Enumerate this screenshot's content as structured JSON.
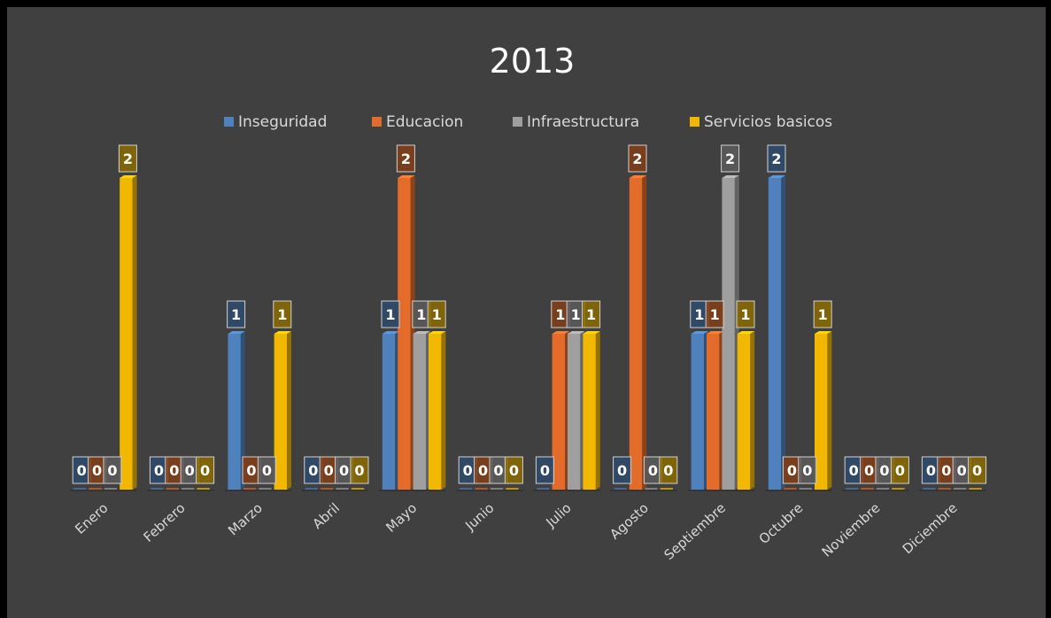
{
  "chart_data": {
    "type": "bar",
    "title": "2013",
    "categories": [
      "Enero",
      "Febrero",
      "Marzo",
      "Abril",
      "Mayo",
      "Junio",
      "Julio",
      "Agosto",
      "Septiembre",
      "Octubre",
      "Noviembre",
      "Diciembre"
    ],
    "series": [
      {
        "name": "Inseguridad",
        "color": "#4f81bd",
        "values": [
          0,
          0,
          1,
          0,
          1,
          0,
          0,
          0,
          1,
          2,
          0,
          0
        ]
      },
      {
        "name": "Educacion",
        "color": "#e46c2a",
        "values": [
          0,
          0,
          0,
          0,
          2,
          0,
          1,
          2,
          1,
          0,
          0,
          0
        ]
      },
      {
        "name": "Infraestructura",
        "color": "#9f9f9f",
        "values": [
          0,
          0,
          0,
          0,
          1,
          0,
          1,
          0,
          2,
          0,
          0,
          0
        ]
      },
      {
        "name": "Servicios basicos",
        "color": "#f2b800",
        "values": [
          2,
          0,
          1,
          0,
          1,
          0,
          1,
          0,
          1,
          1,
          0,
          0
        ]
      }
    ],
    "ylim": [
      0,
      2
    ],
    "legend_position": "top",
    "grid": false,
    "data_labels": true
  }
}
